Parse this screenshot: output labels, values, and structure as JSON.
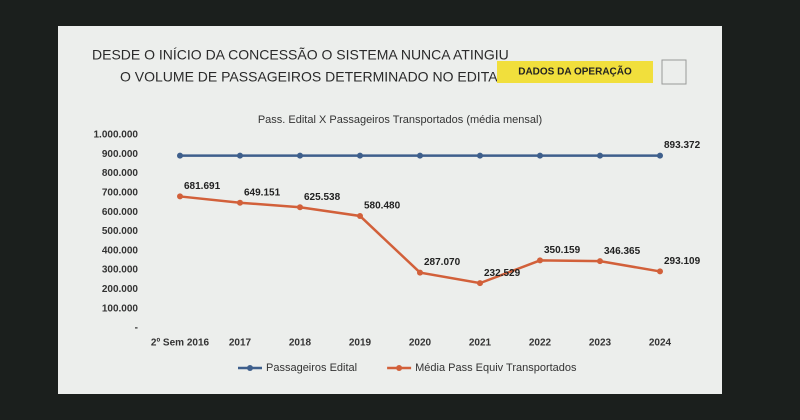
{
  "header": {
    "lines": [
      "DESDE O INÍCIO DA CONCESSÃO O SISTEMA NUNCA ATINGIU",
      "O VOLUME DE PASSAGEIROS DETERMINADO NO EDITAL."
    ],
    "button": "DADOS DA OPERAÇÃO"
  },
  "chart_data": {
    "type": "line",
    "title": "Pass. Edital X Passageiros Transportados (média mensal)",
    "categories": [
      "2º Sem 2016",
      "2017",
      "2018",
      "2019",
      "2020",
      "2021",
      "2022",
      "2023",
      "2024"
    ],
    "series": [
      {
        "name": "Passageiros Edital",
        "color": "#3e5f8c",
        "values": [
          893000,
          893000,
          893000,
          893000,
          893000,
          893000,
          893000,
          893000,
          893372
        ],
        "value_labels": [
          null,
          null,
          null,
          null,
          null,
          null,
          null,
          null,
          "893.372"
        ]
      },
      {
        "name": "Média Pass Equiv Transportados",
        "color": "#d2603a",
        "values": [
          681691,
          649151,
          625538,
          580480,
          287070,
          232529,
          350159,
          346365,
          293109
        ],
        "value_labels": [
          "681.691",
          "649.151",
          "625.538",
          "580.480",
          "287.070",
          "232.529",
          "350.159",
          "346.365",
          "293.109"
        ]
      }
    ],
    "ylim": [
      0,
      1000000
    ],
    "yticks": [
      {
        "value": 0,
        "label": "-"
      },
      {
        "value": 100000,
        "label": "100.000"
      },
      {
        "value": 200000,
        "label": "200.000"
      },
      {
        "value": 300000,
        "label": "300.000"
      },
      {
        "value": 400000,
        "label": "400.000"
      },
      {
        "value": 500000,
        "label": "500.000"
      },
      {
        "value": 600000,
        "label": "600.000"
      },
      {
        "value": 700000,
        "label": "700.000"
      },
      {
        "value": 800000,
        "label": "800.000"
      },
      {
        "value": 900000,
        "label": "900.000"
      },
      {
        "value": 1000000,
        "label": "1.000.000"
      }
    ],
    "grid": false,
    "legend": "bottom"
  }
}
